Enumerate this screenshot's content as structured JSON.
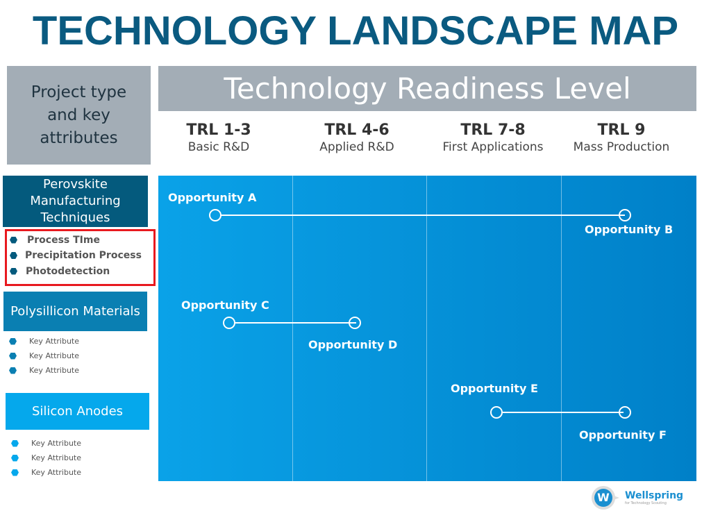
{
  "title": "TECHNOLOGY LANDSCAPE MAP",
  "project_header": "Project type and key attributes",
  "trl_header": "Technology Readiness Level",
  "columns": [
    {
      "trl": "TRL 1-3",
      "stage": "Basic R&D"
    },
    {
      "trl": "TRL 4-6",
      "stage": "Applied R&D"
    },
    {
      "trl": "TRL 7-8",
      "stage": "First Applications"
    },
    {
      "trl": "TRL 9",
      "stage": "Mass Production"
    }
  ],
  "categories": [
    {
      "name": "Perovskite Manufacturing Techniques",
      "color": "#045a7d",
      "attributes": [
        "Process TIme",
        "Precipitation Process",
        "Photodetection"
      ],
      "highlighted": true
    },
    {
      "name": "Polysillicon Materials",
      "color": "#0a7fb2",
      "attributes": [
        "Key Attribute",
        "Key Attribute",
        "Key Attribute"
      ]
    },
    {
      "name": "Silicon Anodes",
      "color": "#05a8ec",
      "attributes": [
        "Key Attribute",
        "Key Attribute",
        "Key Attribute"
      ]
    }
  ],
  "opportunities": [
    "Opportunity A",
    "Opportunity B",
    "Opportunity C",
    "Opportunity D",
    "Opportunity E",
    "Opportunity F"
  ],
  "logo": {
    "name": "Wellspring",
    "tagline": "for Technology Scouting"
  },
  "colors": {
    "title": "#0a5a80",
    "header_bg": "#a3adb6",
    "highlight_border": "#e8191f"
  }
}
